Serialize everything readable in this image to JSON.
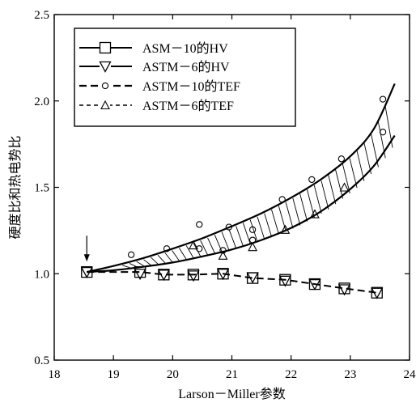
{
  "chart_data": {
    "type": "line",
    "title": "",
    "xlabel": "Larson－Miller参数",
    "ylabel": "硬度比和热电势比",
    "xlim": [
      18,
      24
    ],
    "ylim": [
      0.5,
      2.5
    ],
    "xticks": [
      "18",
      "19",
      "20",
      "21",
      "22",
      "23",
      "24"
    ],
    "yticks": [
      "0.5",
      "1.0",
      "1.5",
      "2.0",
      "2.5"
    ],
    "legend_position": "top-left",
    "series": [
      {
        "name": "ASM－10的HV",
        "marker": "square",
        "line": "dashed",
        "points": [
          [
            18.55,
            1.01
          ],
          [
            19.45,
            1.01
          ],
          [
            19.85,
            0.995
          ],
          [
            20.35,
            0.995
          ],
          [
            20.85,
            1.0
          ],
          [
            21.35,
            0.975
          ],
          [
            21.9,
            0.965
          ],
          [
            22.4,
            0.94
          ],
          [
            22.9,
            0.915
          ],
          [
            23.45,
            0.89
          ]
        ]
      },
      {
        "name": "ASTM－6的HV",
        "marker": "triangle-down",
        "line": "dashed",
        "points": [
          [
            18.55,
            1.01
          ],
          [
            19.45,
            1.0
          ],
          [
            19.85,
            0.995
          ],
          [
            20.35,
            0.99
          ],
          [
            20.85,
            1.0
          ],
          [
            21.35,
            0.98
          ],
          [
            21.9,
            0.96
          ],
          [
            22.4,
            0.94
          ],
          [
            22.9,
            0.91
          ],
          [
            23.45,
            0.89
          ]
        ]
      },
      {
        "name": "ASTM－10的TEF",
        "marker": "circle",
        "line": "none",
        "points": [
          [
            19.3,
            1.11
          ],
          [
            19.9,
            1.145
          ],
          [
            20.45,
            1.285
          ],
          [
            20.95,
            1.27
          ],
          [
            20.45,
            1.145
          ],
          [
            20.85,
            1.135
          ],
          [
            21.35,
            1.255
          ],
          [
            21.35,
            1.195
          ],
          [
            21.85,
            1.43
          ],
          [
            22.35,
            1.545
          ],
          [
            22.85,
            1.665
          ],
          [
            23.55,
            2.01
          ],
          [
            23.55,
            1.82
          ]
        ]
      },
      {
        "name": "ASTM－6的TEF",
        "marker": "triangle-up",
        "line": "none",
        "points": [
          [
            20.35,
            1.165
          ],
          [
            20.85,
            1.105
          ],
          [
            21.35,
            1.155
          ],
          [
            21.9,
            1.255
          ],
          [
            22.4,
            1.345
          ],
          [
            22.9,
            1.5
          ]
        ]
      }
    ],
    "bands": [
      {
        "upper": [
          [
            18.55,
            1.01
          ],
          [
            19.0,
            1.045
          ],
          [
            19.5,
            1.09
          ],
          [
            20.0,
            1.145
          ],
          [
            20.5,
            1.205
          ],
          [
            21.0,
            1.275
          ],
          [
            21.5,
            1.35
          ],
          [
            22.0,
            1.44
          ],
          [
            22.5,
            1.545
          ],
          [
            23.0,
            1.68
          ],
          [
            23.4,
            1.84
          ],
          [
            23.75,
            2.1
          ]
        ],
        "lower": [
          [
            18.55,
            1.01
          ],
          [
            19.0,
            1.02
          ],
          [
            19.5,
            1.04
          ],
          [
            20.0,
            1.065
          ],
          [
            20.5,
            1.1
          ],
          [
            21.0,
            1.14
          ],
          [
            21.5,
            1.195
          ],
          [
            22.0,
            1.265
          ],
          [
            22.5,
            1.36
          ],
          [
            23.0,
            1.49
          ],
          [
            23.4,
            1.625
          ],
          [
            23.75,
            1.8
          ]
        ]
      }
    ],
    "annotations": [
      {
        "type": "arrow",
        "x": 18.55,
        "y_from": 1.22,
        "y_to": 1.07
      }
    ]
  }
}
